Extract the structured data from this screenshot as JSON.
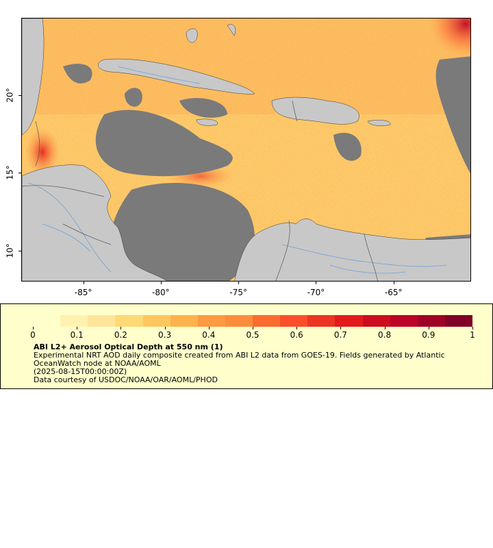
{
  "map": {
    "x_ticks": [
      "-85°",
      "-80°",
      "-75°",
      "-70°",
      "-65°"
    ],
    "y_ticks": [
      "20°",
      "15°",
      "10°"
    ],
    "x_tick_values": [
      -85,
      -80,
      -75,
      -70,
      -65
    ],
    "y_tick_values": [
      20,
      15,
      10
    ],
    "lon_range": [
      -89,
      -60
    ],
    "lat_range": [
      8,
      25
    ],
    "colors": {
      "land": "#c8c8c8",
      "no_data": "#7a7a7a",
      "rivers": "#6aa0d8",
      "borders": "#555555"
    }
  },
  "legend": {
    "colorbar_ticks": [
      "0",
      "0.1",
      "0.2",
      "0.3",
      "0.4",
      "0.5",
      "0.6",
      "0.7",
      "0.8",
      "0.9",
      "1"
    ],
    "colorbar_range": [
      0,
      1
    ],
    "colorbar_colors": [
      "#ffffcc",
      "#fff2b0",
      "#ffe599",
      "#fed976",
      "#fec760",
      "#feb24c",
      "#fd9a42",
      "#fd8d3c",
      "#fc6b30",
      "#fc4e2a",
      "#ec3422",
      "#e31a1c",
      "#cc0d20",
      "#bd0026",
      "#a00026",
      "#800026"
    ],
    "title": "ABI L2+ Aerosol Optical Depth at 550 nm (1)",
    "line1": "Experimental NRT AOD daily composite created from ABI L2 data from GOES-19. Fields generated by Atlantic",
    "line2": "OceanWatch node at NOAA/AOML",
    "line3": "(2025-08-15T00:00:00Z)",
    "line4": "Data courtesy of USDOC/NOAA/OAR/AOML/PHOD"
  }
}
